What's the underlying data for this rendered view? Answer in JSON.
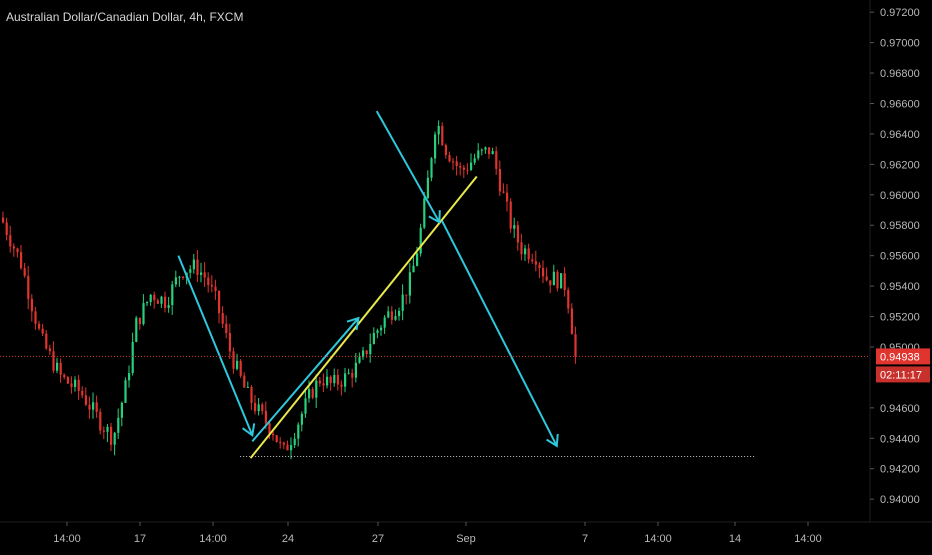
{
  "header": {
    "title": "Australian Dollar/Canadian Dollar, 4h, FXCM"
  },
  "colors": {
    "background": "#000000",
    "up": "#26d07c",
    "down": "#e0342f",
    "axis_text": "#b8b8b8",
    "trend_arrow": "#2ec8dc",
    "trend_line": "#e8e84a",
    "price_line": "#d23a34",
    "support_line": "#c8c8c8"
  },
  "chart_data": {
    "type": "candlestick",
    "symbol": "AUDCAD",
    "timeframe": "4h",
    "source": "FXCM",
    "ylim": [
      0.9385,
      0.9728
    ],
    "y_ticks": [
      "0.97200",
      "0.97000",
      "0.96800",
      "0.96600",
      "0.96400",
      "0.96200",
      "0.96000",
      "0.95800",
      "0.95600",
      "0.95400",
      "0.95200",
      "0.95000",
      "0.94600",
      "0.94400",
      "0.94200",
      "0.94000"
    ],
    "x_ticks": [
      "14:00",
      "17",
      "14:00",
      "24",
      "27",
      "Sep",
      "7",
      "14:00",
      "14",
      "14:00"
    ],
    "current_price": {
      "label": "0.94938",
      "value": 0.94938
    },
    "countdown": "02:11:17",
    "price_path": [
      [
        0,
        0.9585
      ],
      [
        20,
        0.9555
      ],
      [
        40,
        0.9505
      ],
      [
        60,
        0.948
      ],
      [
        80,
        0.947
      ],
      [
        100,
        0.945
      ],
      [
        112,
        0.944
      ],
      [
        125,
        0.9475
      ],
      [
        135,
        0.9515
      ],
      [
        150,
        0.9535
      ],
      [
        165,
        0.953
      ],
      [
        180,
        0.955
      ],
      [
        195,
        0.9553
      ],
      [
        205,
        0.9545
      ],
      [
        215,
        0.953
      ],
      [
        230,
        0.9495
      ],
      [
        245,
        0.947
      ],
      [
        260,
        0.9455
      ],
      [
        272,
        0.9445
      ],
      [
        282,
        0.943
      ],
      [
        290,
        0.944
      ],
      [
        300,
        0.9455
      ],
      [
        310,
        0.947
      ],
      [
        320,
        0.948
      ],
      [
        330,
        0.9475
      ],
      [
        345,
        0.948
      ],
      [
        360,
        0.949
      ],
      [
        370,
        0.9505
      ],
      [
        385,
        0.952
      ],
      [
        400,
        0.953
      ],
      [
        410,
        0.9545
      ],
      [
        418,
        0.957
      ],
      [
        425,
        0.96
      ],
      [
        430,
        0.9625
      ],
      [
        435,
        0.965
      ],
      [
        445,
        0.963
      ],
      [
        460,
        0.9615
      ],
      [
        475,
        0.9625
      ],
      [
        490,
        0.963
      ],
      [
        500,
        0.9605
      ],
      [
        510,
        0.958
      ],
      [
        520,
        0.9565
      ],
      [
        535,
        0.956
      ],
      [
        545,
        0.9545
      ],
      [
        555,
        0.9545
      ],
      [
        565,
        0.954
      ],
      [
        575,
        0.9494
      ]
    ],
    "annotations": {
      "arrows": [
        {
          "from": [
            0.205,
            0.956
          ],
          "to": [
            0.29,
            0.9442
          ]
        },
        {
          "from": [
            0.29,
            0.9438
          ],
          "to": [
            0.412,
            0.9519
          ]
        },
        {
          "from": [
            0.433,
            0.9655
          ],
          "to": [
            0.505,
            0.9582
          ]
        },
        {
          "from": [
            0.508,
            0.9583
          ],
          "to": [
            0.64,
            0.9435
          ]
        }
      ],
      "trend_line": {
        "from": [
          0.288,
          0.9427
        ],
        "to": [
          0.548,
          0.9612
        ]
      },
      "support_line": {
        "from": [
          0.276,
          0.9428
        ],
        "to": [
          0.868,
          0.9428
        ]
      }
    }
  }
}
